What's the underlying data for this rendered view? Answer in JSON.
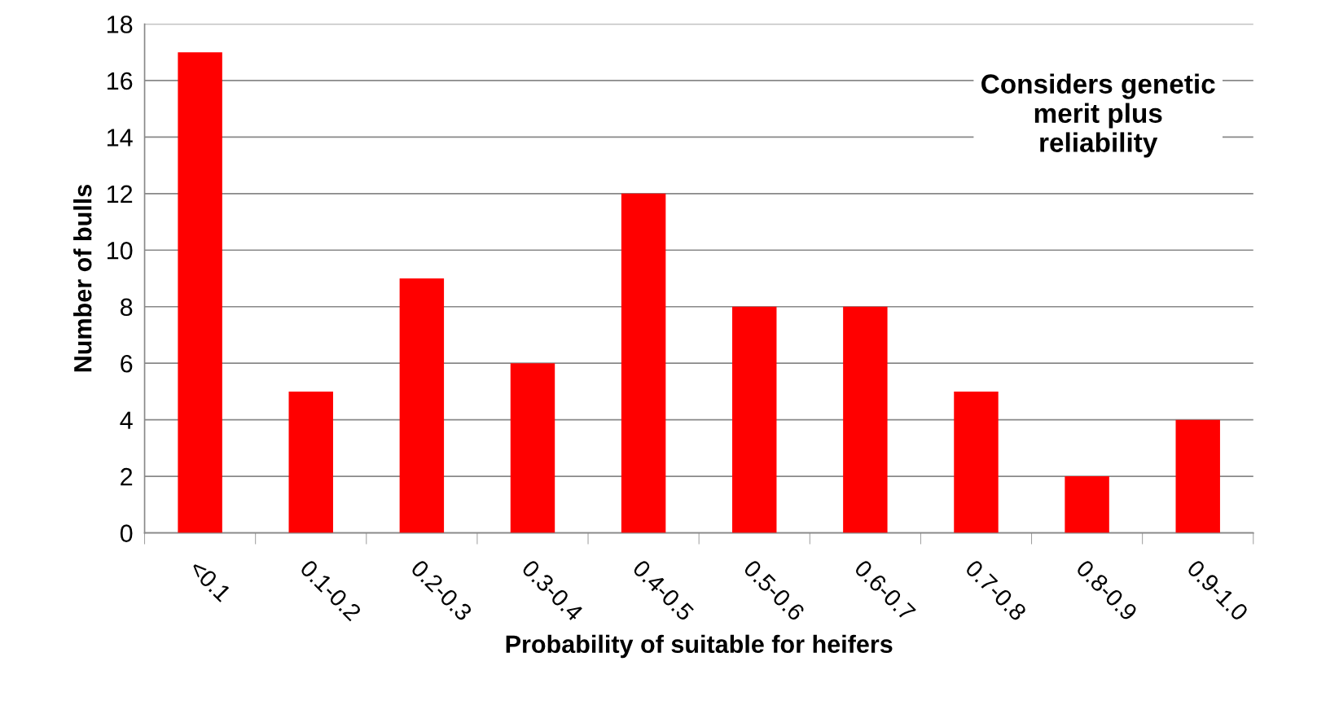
{
  "chart_data": {
    "type": "bar",
    "xlabel": "Probability of suitable for heifers",
    "ylabel": "Number of bulls",
    "categories": [
      "<0.1",
      "0.1-0.2",
      "0.2-0.3",
      "0.3-0.4",
      "0.4-0.5",
      "0.5-0.6",
      "0.6-0.7",
      "0.7-0.8",
      "0.8-0.9",
      "0.9-1.0"
    ],
    "values": [
      17,
      5,
      9,
      6,
      12,
      8,
      8,
      5,
      2,
      4
    ],
    "color": "#ff0000",
    "ylim": [
      0,
      18
    ],
    "yticks": [
      0,
      2,
      4,
      6,
      8,
      10,
      12,
      14,
      16,
      18
    ],
    "grid": "y",
    "legend": false,
    "annotations": [
      "Considers genetic\nmerit plus\nreliability"
    ]
  }
}
